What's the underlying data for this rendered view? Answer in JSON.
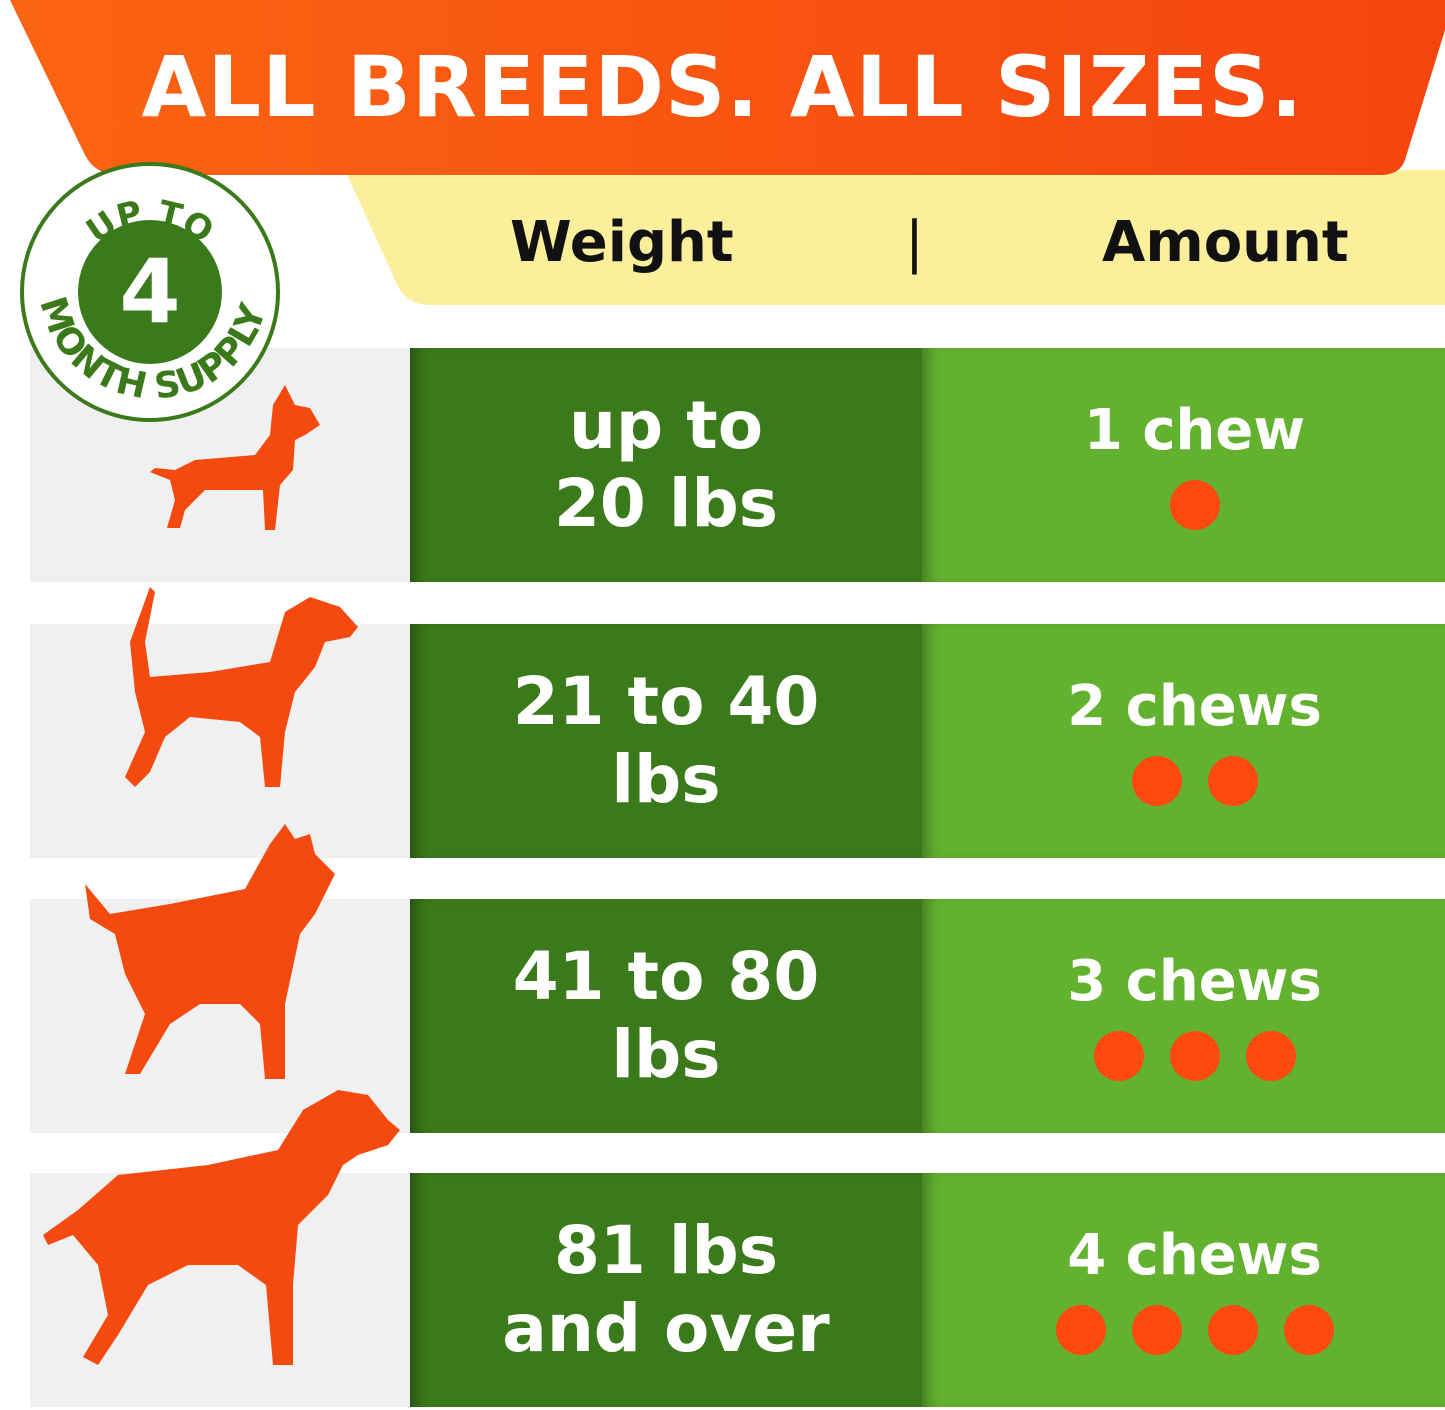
{
  "banner": {
    "title": "ALL BREEDS. ALL SIZES."
  },
  "badge": {
    "top": "UP TO",
    "number": "4",
    "bottom": "MONTH SUPPLY"
  },
  "header": {
    "weight": "Weight",
    "separator": "|",
    "amount": "Amount"
  },
  "rows": [
    {
      "weight_line1": "up to",
      "weight_line2": "20 lbs",
      "amount": "1 chew",
      "chews": 1,
      "dog": "small-dog-icon"
    },
    {
      "weight_line1": "21 to 40",
      "weight_line2": "lbs",
      "amount": "2 chews",
      "chews": 2,
      "dog": "beagle-icon"
    },
    {
      "weight_line1": "41 to 80",
      "weight_line2": "lbs",
      "amount": "3 chews",
      "chews": 3,
      "dog": "terrier-icon"
    },
    {
      "weight_line1": "81 lbs",
      "weight_line2": "and over",
      "amount": "4 chews",
      "chews": 4,
      "dog": "large-dog-icon"
    }
  ],
  "colors": {
    "orange": "#fa5a12",
    "yellow": "#fbef9c",
    "dark_green": "#3b7a1a",
    "light_green": "#63b22f",
    "dot": "#ff4a0f",
    "gray": "#f1f0f1"
  }
}
